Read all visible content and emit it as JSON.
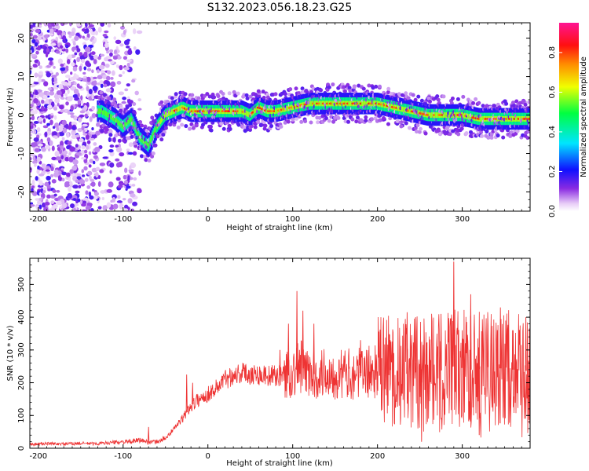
{
  "title": "S132.2023.056.18.23.G25",
  "chart_data": [
    {
      "type": "heatmap",
      "title": "",
      "xlabel": "Height of straight line (km)",
      "ylabel": "Frequency (Hz)",
      "xlim": [
        -210,
        380
      ],
      "ylim": [
        -25,
        24
      ],
      "xticks": [
        "-200",
        "-100",
        "0",
        "100",
        "200",
        "300"
      ],
      "xtick_values": [
        -200,
        -100,
        0,
        100,
        200,
        300
      ],
      "yticks": [
        "-20",
        "-10",
        "0",
        "10",
        "20"
      ],
      "ytick_values": [
        -20,
        -10,
        0,
        10,
        20
      ],
      "colorbar": {
        "label": "Normalized spectral amplitude",
        "ticks": [
          "0.0",
          "0.2",
          "0.4",
          "0.6",
          "0.8"
        ],
        "tick_values": [
          0.0,
          0.2,
          0.4,
          0.6,
          0.8
        ],
        "range": [
          0,
          0.95
        ],
        "colormap": "rainbow (white-violet-blue-cyan-green-yellow-red-magenta)"
      },
      "ridge": {
        "x": [
          -125,
          -110,
          -100,
          -90,
          -80,
          -75,
          -70,
          -60,
          -50,
          -40,
          -30,
          -20,
          0,
          20,
          40,
          50,
          60,
          70,
          80,
          100,
          120,
          140,
          160,
          180,
          200,
          220,
          240,
          260,
          280,
          300,
          320,
          340,
          360,
          380
        ],
        "y": [
          1,
          -1,
          -3,
          -1,
          -6,
          -7,
          -8,
          -3,
          0,
          1,
          2,
          1,
          1,
          1,
          1,
          0,
          2,
          1,
          1,
          2,
          3,
          3,
          3,
          3,
          3,
          2,
          1,
          0,
          0,
          0,
          -1,
          -1,
          -1,
          -1
        ]
      }
    },
    {
      "type": "line",
      "title": "",
      "xlabel": "Height of straight line (km)",
      "ylabel": "SNR (10 * v/v)",
      "xlim": [
        -210,
        380
      ],
      "ylim": [
        0,
        580
      ],
      "xticks": [
        "-200",
        "-100",
        "0",
        "100",
        "200",
        "300"
      ],
      "xtick_values": [
        -200,
        -100,
        0,
        100,
        200,
        300
      ],
      "yticks": [
        "0",
        "100",
        "200",
        "300",
        "400",
        "500"
      ],
      "ytick_values": [
        0,
        100,
        200,
        300,
        400,
        500
      ],
      "series": [
        {
          "color": "#ee3333",
          "x": [
            -210,
            -190,
            -170,
            -150,
            -130,
            -110,
            -90,
            -80,
            -70,
            -60,
            -50,
            -40,
            -30,
            -20,
            -10,
            0,
            10,
            20,
            30,
            40,
            60,
            80,
            90,
            100,
            105,
            110,
            115,
            120,
            140,
            160,
            180,
            200,
            220,
            230,
            240,
            250,
            260,
            270,
            280,
            290,
            300,
            310,
            320,
            340,
            360,
            380
          ],
          "y": [
            12,
            14,
            13,
            15,
            14,
            18,
            20,
            25,
            18,
            20,
            30,
            60,
            90,
            130,
            150,
            165,
            185,
            210,
            225,
            230,
            225,
            220,
            225,
            230,
            240,
            250,
            235,
            225,
            230,
            225,
            230,
            235,
            240,
            230,
            225,
            240,
            245,
            240,
            235,
            250,
            245,
            240,
            250,
            245,
            240,
            235
          ],
          "spikes": {
            "x": [
              -70,
              -25,
              -18,
              85,
              95,
              105,
              108,
              112,
              125,
              180,
              215,
              235,
              245,
              252,
              275,
              290,
              300,
              310,
              320,
              330,
              345,
              360,
              375
            ],
            "y": [
              65,
              225,
              200,
              300,
              380,
              480,
              300,
              420,
              380,
              330,
              330,
              415,
              400,
              20,
              410,
              570,
              360,
              470,
              40,
              380,
              430,
              360,
              400
            ]
          }
        }
      ]
    }
  ]
}
